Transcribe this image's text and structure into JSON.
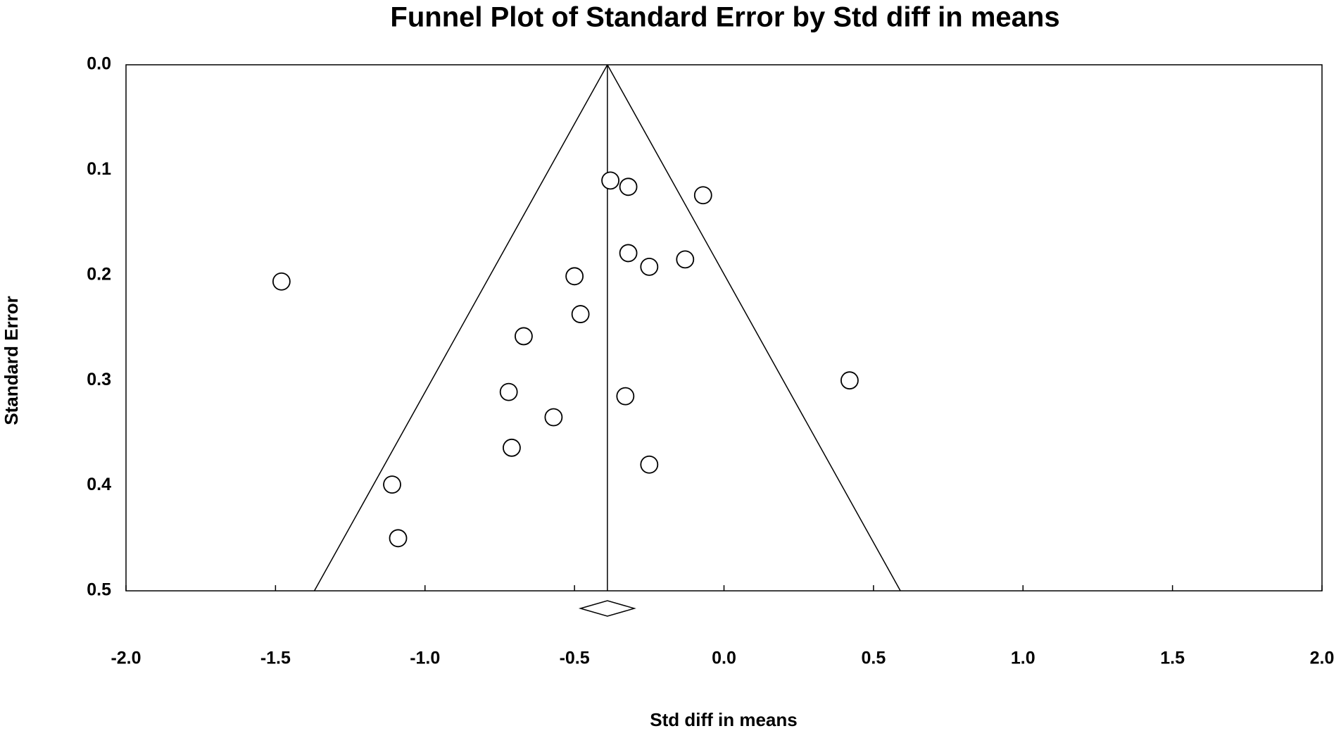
{
  "chart_data": {
    "type": "funnel",
    "title": "Funnel Plot of Standard Error by Std diff in means",
    "x_label": "Std diff in means",
    "y_label": "Standard Error",
    "x": [
      -0.38,
      -0.32,
      -0.07,
      -0.32,
      -0.25,
      -0.13,
      -0.5,
      -1.48,
      -0.48,
      -0.67,
      0.42,
      -0.72,
      -0.33,
      -0.57,
      -0.71,
      -0.25,
      -1.11,
      -1.09
    ],
    "values": [
      0.11,
      0.116,
      0.124,
      0.179,
      0.192,
      0.185,
      0.201,
      0.206,
      0.237,
      0.258,
      0.3,
      0.311,
      0.315,
      0.335,
      0.364,
      0.38,
      0.399,
      0.45
    ],
    "summary": {
      "effect": -0.39,
      "ci_lower": -0.48,
      "ci_upper": -0.3
    },
    "funnel_limits": [
      -1.37,
      0.59
    ],
    "xlim": [
      -2.0,
      2.0
    ],
    "xticks": [
      {
        "value": -2.0,
        "label": "-2.0"
      },
      -1.5,
      {
        "value": -1.0,
        "label": "-1.0"
      },
      -0.5,
      {
        "value": 0.0,
        "label": "0.0"
      },
      0.5,
      {
        "value": 1.0,
        "label": "1.0"
      },
      1.5,
      {
        "value": 2.0,
        "label": "2.0"
      }
    ],
    "ylim": [
      0.0,
      0.5
    ],
    "yticks": [
      {
        "value": 0.0,
        "label": "0.0"
      },
      0.1,
      0.2,
      0.3,
      0.4,
      0.5
    ],
    "y_inverted": true,
    "color": "#000000"
  }
}
